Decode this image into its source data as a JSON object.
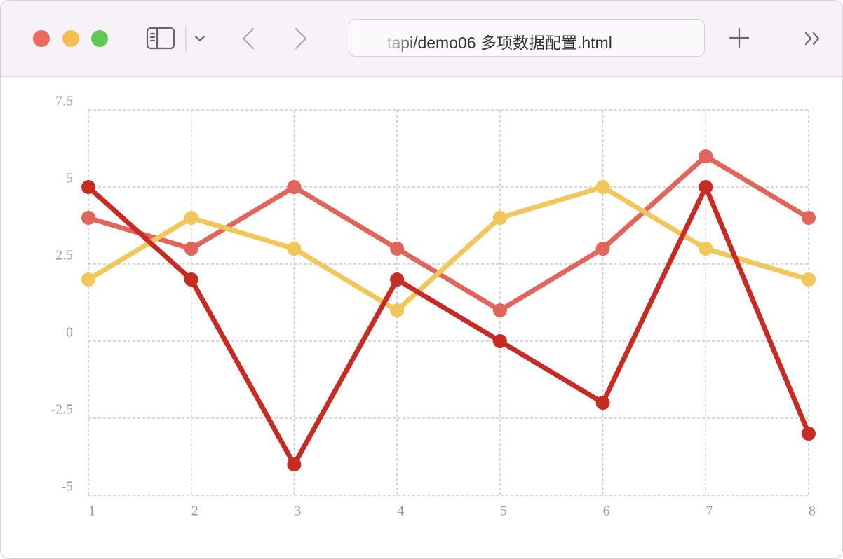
{
  "browser": {
    "url": "tapi/demo06 多项数据配置.html"
  },
  "chart_data": {
    "type": "line",
    "x": [
      1,
      2,
      3,
      4,
      5,
      6,
      7,
      8
    ],
    "xlim": [
      1,
      8
    ],
    "xticks": [
      1,
      2,
      3,
      4,
      5,
      6,
      7,
      8
    ],
    "ylim": [
      -5,
      7.5
    ],
    "yticks": [
      -5,
      -2.5,
      0,
      2.5,
      5,
      7.5
    ],
    "grid": true,
    "series": [
      {
        "color": "#e0655a",
        "values": [
          4,
          3,
          5,
          3,
          1,
          3,
          6,
          4
        ]
      },
      {
        "color": "#f1c75b",
        "values": [
          2,
          4,
          3,
          1,
          4,
          5,
          3,
          2
        ]
      },
      {
        "color": "#c62b24",
        "values": [
          5,
          2,
          -4,
          2,
          0,
          -2,
          5,
          -3
        ]
      }
    ]
  }
}
